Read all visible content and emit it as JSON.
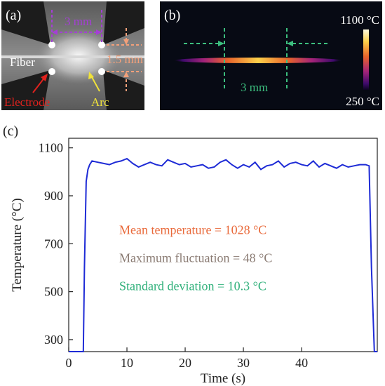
{
  "panel_a": {
    "label": "(a)",
    "gap_label": "3 mm",
    "height_label": "1.5 mm",
    "fiber_label": "Fiber",
    "electrode_label": "Electrode",
    "arc_label": "Arc",
    "colors": {
      "gap": "#a53fd6",
      "height": "#f2a07a",
      "electrode": "#e0221e",
      "arc": "#f0e23a"
    }
  },
  "panel_b": {
    "label": "(b)",
    "length_label": "3 mm",
    "scale_max_label": "1100 °C",
    "scale_min_label": "250 °C",
    "colors": {
      "marker": "#3cbf7f"
    }
  },
  "panel_c": {
    "label": "(c)",
    "annotations": [
      {
        "text": "Mean temperature = 1028 °C",
        "color": "#e96a3b"
      },
      {
        "text": "Maximum fluctuation = 48 °C",
        "color": "#8a7b73"
      },
      {
        "text": "Standard deviation = 10.3 °C",
        "color": "#2fb07a"
      }
    ],
    "line_color": "#1e2bd6"
  },
  "chart_data": {
    "type": "line",
    "xlabel": "Time (s)",
    "ylabel": "Temperature (°C)",
    "xlim": [
      0,
      53
    ],
    "ylim": [
      250,
      1140
    ],
    "xticks": [
      0,
      10,
      20,
      30,
      40
    ],
    "yticks": [
      300,
      500,
      700,
      900,
      1100
    ],
    "grid": false,
    "series": [
      {
        "x": [
          0,
          2.5,
          2.7,
          3.0,
          3.3,
          3.6,
          4,
          5,
          6,
          7,
          8,
          9,
          10,
          11,
          12,
          13,
          14,
          15,
          16,
          17,
          18,
          19,
          20,
          21,
          22,
          23,
          24,
          25,
          26,
          27,
          28,
          29,
          30,
          31,
          32,
          33,
          34,
          35,
          36,
          37,
          38,
          39,
          40,
          41,
          42,
          43,
          44,
          45,
          46,
          47,
          48,
          49,
          50,
          51,
          51.6,
          52.0,
          52.5,
          53
        ],
        "y": [
          250,
          250,
          600,
          960,
          1010,
          1030,
          1045,
          1040,
          1035,
          1030,
          1040,
          1045,
          1055,
          1035,
          1020,
          1030,
          1040,
          1030,
          1025,
          1050,
          1040,
          1030,
          1035,
          1020,
          1025,
          1030,
          1015,
          1020,
          1040,
          1050,
          1030,
          1015,
          1030,
          1020,
          1040,
          1010,
          1025,
          1030,
          1045,
          1020,
          1035,
          1040,
          1030,
          1025,
          1045,
          1020,
          1035,
          1025,
          1015,
          1030,
          1020,
          1025,
          1030,
          1030,
          1025,
          600,
          250,
          250
        ]
      }
    ]
  }
}
